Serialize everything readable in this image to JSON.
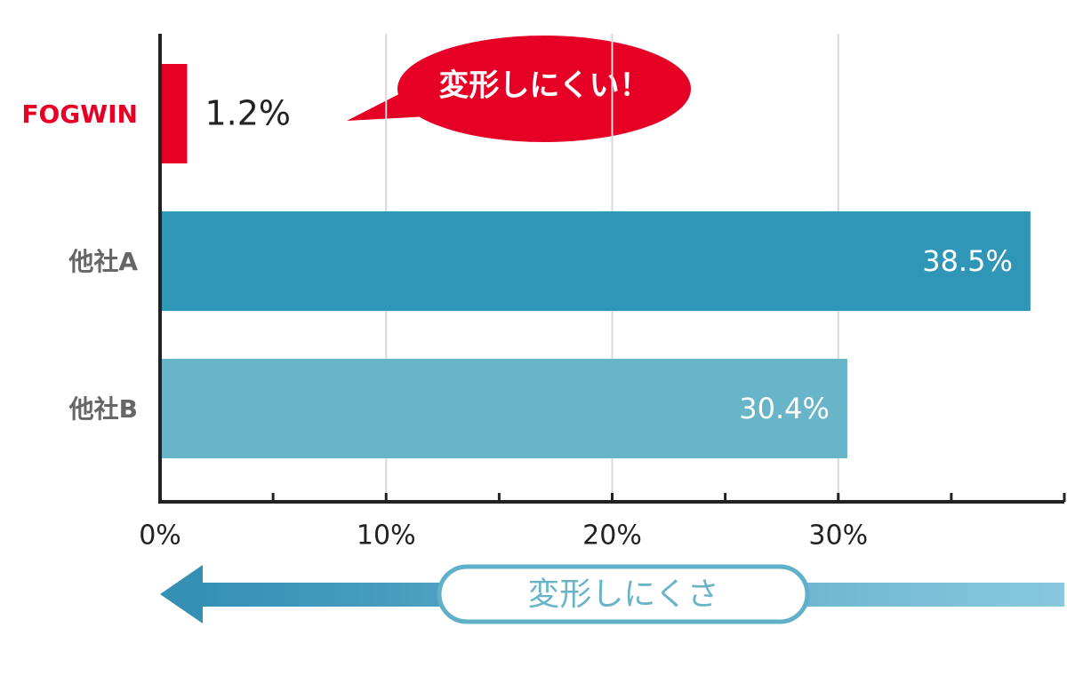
{
  "chart_data": {
    "type": "bar",
    "orientation": "horizontal",
    "categories": [
      "FOGWIN",
      "他社A",
      "他社B"
    ],
    "values": [
      1.2,
      38.5,
      30.4
    ],
    "value_labels": [
      "1.2%",
      "38.5%",
      "30.4%"
    ],
    "colors": [
      "#e60026",
      "#3096b8",
      "#68b4c8"
    ],
    "category_label_colors": [
      "#e60026",
      "#666666",
      "#666666"
    ],
    "xlim": [
      0,
      40
    ],
    "xticks": [
      {
        "value": 0,
        "label": "0%"
      },
      {
        "value": 10,
        "label": "10%"
      },
      {
        "value": 20,
        "label": "20%"
      },
      {
        "value": 30,
        "label": "30%"
      }
    ],
    "minor_xticks": [
      5,
      15,
      25,
      35,
      40
    ],
    "grid": true,
    "annotations": [
      "変形しにくい！",
      "変形しにくさ"
    ]
  }
}
